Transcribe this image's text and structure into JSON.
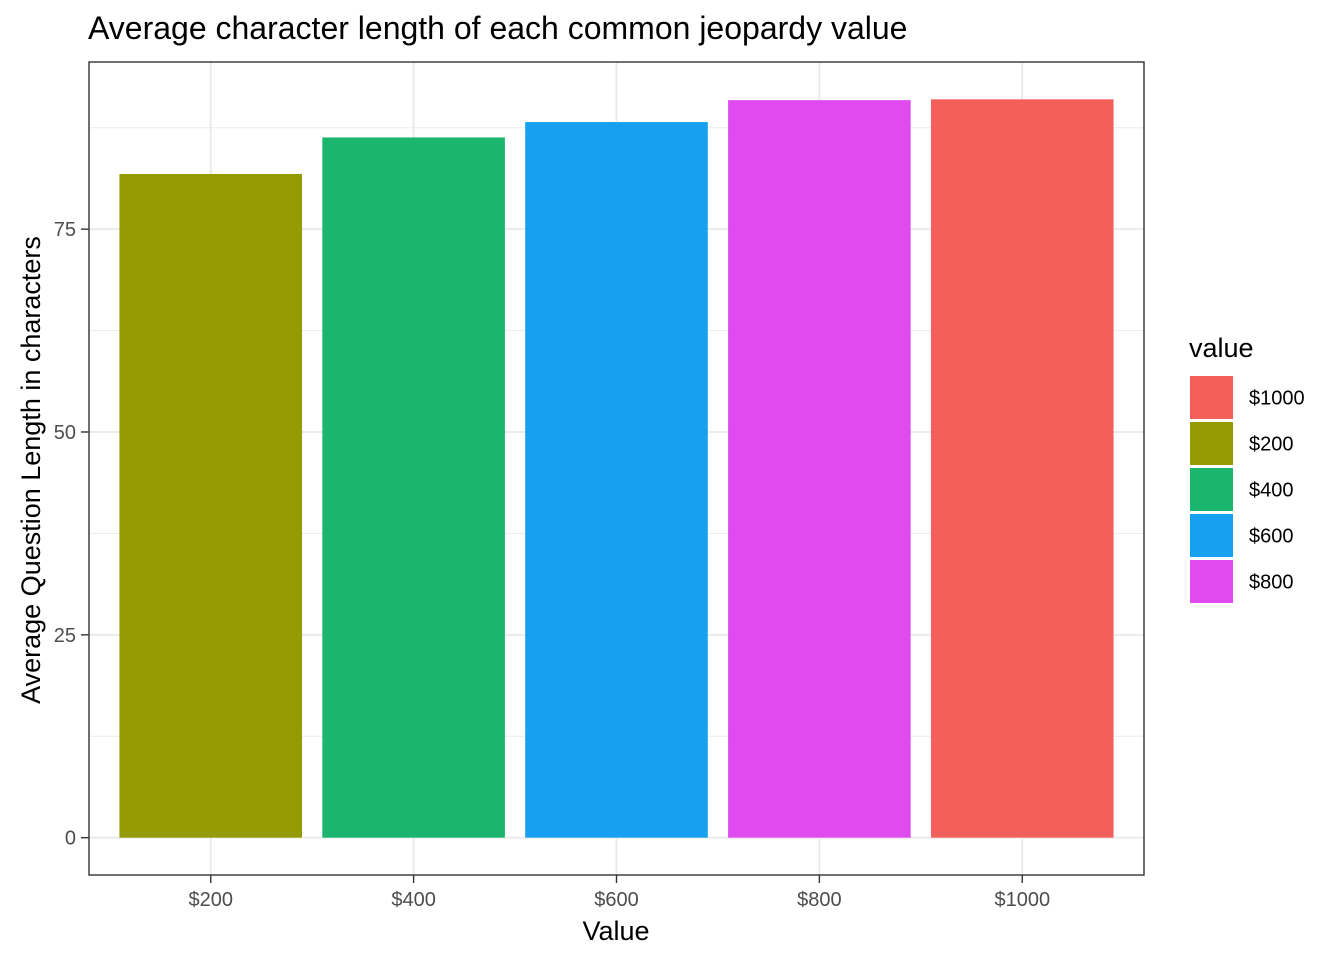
{
  "chart_data": {
    "type": "bar",
    "title": "Average character length of each common jeopardy value",
    "xlabel": "Value",
    "ylabel": "Average Question Length in characters",
    "categories": [
      "$200",
      "$400",
      "$600",
      "$800",
      "$1000"
    ],
    "values": [
      81.8,
      86.3,
      88.2,
      90.9,
      91.0
    ],
    "bar_colors": [
      "#939A02",
      "#1AB66D",
      "#18A0F0",
      "#DF4BEF",
      "#F3605B"
    ],
    "ylim": [
      -4.6,
      95.6
    ],
    "yticks": [
      0,
      25,
      50,
      75
    ],
    "ytick_labels": [
      "0",
      "25",
      "50",
      "75"
    ],
    "grid": true,
    "legend": {
      "title": "value",
      "placement": "right",
      "items": [
        {
          "label": "$1000",
          "color": "#F3605B"
        },
        {
          "label": "$200",
          "color": "#939A02"
        },
        {
          "label": "$400",
          "color": "#1AB66D"
        },
        {
          "label": "$600",
          "color": "#18A0F0"
        },
        {
          "label": "$800",
          "color": "#DF4BEF"
        }
      ]
    }
  }
}
